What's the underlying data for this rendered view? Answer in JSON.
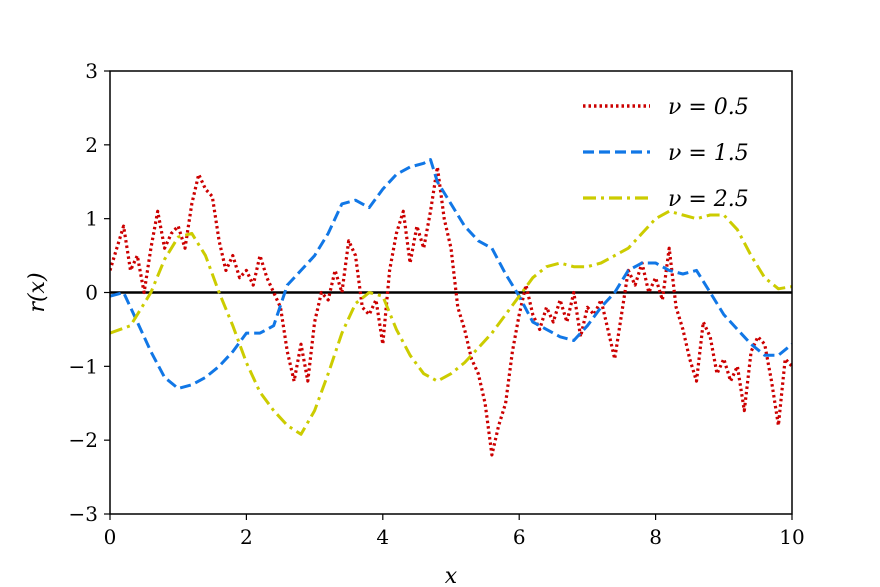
{
  "chart_data": {
    "type": "line",
    "title": "",
    "xlabel": "x",
    "ylabel": "r(x)",
    "xlim": [
      0,
      10
    ],
    "ylim": [
      -3,
      3
    ],
    "xticks": [
      0,
      2,
      4,
      6,
      8,
      10
    ],
    "xtick_labels": [
      "0",
      "2",
      "4",
      "6",
      "8",
      "10"
    ],
    "yticks": [
      -3,
      -2,
      -1,
      0,
      1,
      2,
      3
    ],
    "ytick_labels": [
      "−3",
      "−2",
      "−1",
      "0",
      "1",
      "2",
      "3"
    ],
    "grid": false,
    "legend_position": "top-right",
    "reference_line": {
      "y": 0,
      "color": "#000000"
    },
    "series": [
      {
        "name": "ν = 0.5",
        "color": "#cc0000",
        "style": "dotted",
        "points": [
          [
            0.0,
            0.3
          ],
          [
            0.1,
            0.6
          ],
          [
            0.2,
            0.9
          ],
          [
            0.3,
            0.3
          ],
          [
            0.4,
            0.5
          ],
          [
            0.5,
            0.0
          ],
          [
            0.6,
            0.6
          ],
          [
            0.7,
            1.1
          ],
          [
            0.8,
            0.6
          ],
          [
            0.9,
            0.8
          ],
          [
            1.0,
            0.9
          ],
          [
            1.1,
            0.6
          ],
          [
            1.2,
            1.2
          ],
          [
            1.3,
            1.6
          ],
          [
            1.4,
            1.4
          ],
          [
            1.5,
            1.3
          ],
          [
            1.6,
            0.7
          ],
          [
            1.7,
            0.3
          ],
          [
            1.8,
            0.5
          ],
          [
            1.9,
            0.2
          ],
          [
            2.0,
            0.3
          ],
          [
            2.1,
            0.1
          ],
          [
            2.2,
            0.5
          ],
          [
            2.3,
            0.2
          ],
          [
            2.4,
            0.0
          ],
          [
            2.5,
            -0.2
          ],
          [
            2.6,
            -0.8
          ],
          [
            2.7,
            -1.2
          ],
          [
            2.8,
            -0.7
          ],
          [
            2.9,
            -1.2
          ],
          [
            3.0,
            -0.4
          ],
          [
            3.1,
            0.0
          ],
          [
            3.2,
            -0.1
          ],
          [
            3.3,
            0.3
          ],
          [
            3.4,
            0.0
          ],
          [
            3.5,
            0.7
          ],
          [
            3.6,
            0.5
          ],
          [
            3.7,
            -0.2
          ],
          [
            3.8,
            -0.3
          ],
          [
            3.9,
            -0.1
          ],
          [
            4.0,
            -0.7
          ],
          [
            4.1,
            0.3
          ],
          [
            4.2,
            0.8
          ],
          [
            4.3,
            1.1
          ],
          [
            4.4,
            0.4
          ],
          [
            4.5,
            0.9
          ],
          [
            4.6,
            0.6
          ],
          [
            4.7,
            1.1
          ],
          [
            4.8,
            1.7
          ],
          [
            4.9,
            1.0
          ],
          [
            5.0,
            0.6
          ],
          [
            5.1,
            -0.2
          ],
          [
            5.2,
            -0.5
          ],
          [
            5.3,
            -0.9
          ],
          [
            5.4,
            -1.1
          ],
          [
            5.5,
            -1.5
          ],
          [
            5.6,
            -2.2
          ],
          [
            5.7,
            -1.8
          ],
          [
            5.8,
            -1.5
          ],
          [
            5.9,
            -0.8
          ],
          [
            6.0,
            -0.3
          ],
          [
            6.1,
            0.1
          ],
          [
            6.2,
            -0.3
          ],
          [
            6.3,
            -0.5
          ],
          [
            6.4,
            -0.2
          ],
          [
            6.5,
            -0.4
          ],
          [
            6.6,
            -0.1
          ],
          [
            6.7,
            -0.4
          ],
          [
            6.8,
            0.0
          ],
          [
            6.9,
            -0.6
          ],
          [
            7.0,
            -0.2
          ],
          [
            7.1,
            -0.3
          ],
          [
            7.2,
            -0.1
          ],
          [
            7.3,
            -0.5
          ],
          [
            7.4,
            -0.9
          ],
          [
            7.5,
            -0.3
          ],
          [
            7.6,
            0.3
          ],
          [
            7.7,
            0.1
          ],
          [
            7.8,
            0.4
          ],
          [
            7.9,
            0.0
          ],
          [
            8.0,
            0.2
          ],
          [
            8.1,
            -0.1
          ],
          [
            8.2,
            0.6
          ],
          [
            8.3,
            -0.2
          ],
          [
            8.4,
            -0.5
          ],
          [
            8.5,
            -0.9
          ],
          [
            8.6,
            -1.2
          ],
          [
            8.7,
            -0.4
          ],
          [
            8.8,
            -0.6
          ],
          [
            8.9,
            -1.1
          ],
          [
            9.0,
            -0.9
          ],
          [
            9.1,
            -1.2
          ],
          [
            9.2,
            -1.0
          ],
          [
            9.3,
            -1.6
          ],
          [
            9.4,
            -0.8
          ],
          [
            9.5,
            -0.6
          ],
          [
            9.6,
            -0.7
          ],
          [
            9.7,
            -1.2
          ],
          [
            9.8,
            -1.8
          ],
          [
            9.9,
            -0.9
          ],
          [
            10.0,
            -1.0
          ]
        ]
      },
      {
        "name": "ν = 1.5",
        "color": "#1177e6",
        "style": "dashed",
        "points": [
          [
            0.0,
            -0.05
          ],
          [
            0.2,
            0.0
          ],
          [
            0.4,
            -0.4
          ],
          [
            0.6,
            -0.8
          ],
          [
            0.8,
            -1.15
          ],
          [
            1.0,
            -1.3
          ],
          [
            1.2,
            -1.25
          ],
          [
            1.4,
            -1.15
          ],
          [
            1.6,
            -1.0
          ],
          [
            1.8,
            -0.8
          ],
          [
            2.0,
            -0.55
          ],
          [
            2.2,
            -0.55
          ],
          [
            2.4,
            -0.45
          ],
          [
            2.6,
            0.1
          ],
          [
            2.8,
            0.3
          ],
          [
            3.0,
            0.5
          ],
          [
            3.2,
            0.8
          ],
          [
            3.4,
            1.2
          ],
          [
            3.6,
            1.25
          ],
          [
            3.8,
            1.15
          ],
          [
            4.0,
            1.4
          ],
          [
            4.2,
            1.6
          ],
          [
            4.4,
            1.7
          ],
          [
            4.6,
            1.75
          ],
          [
            4.7,
            1.8
          ],
          [
            4.8,
            1.5
          ],
          [
            5.0,
            1.2
          ],
          [
            5.2,
            0.9
          ],
          [
            5.4,
            0.7
          ],
          [
            5.6,
            0.6
          ],
          [
            5.8,
            0.25
          ],
          [
            6.0,
            -0.05
          ],
          [
            6.2,
            -0.4
          ],
          [
            6.4,
            -0.5
          ],
          [
            6.6,
            -0.6
          ],
          [
            6.8,
            -0.65
          ],
          [
            7.0,
            -0.45
          ],
          [
            7.2,
            -0.2
          ],
          [
            7.4,
            0.0
          ],
          [
            7.6,
            0.3
          ],
          [
            7.8,
            0.4
          ],
          [
            8.0,
            0.4
          ],
          [
            8.2,
            0.3
          ],
          [
            8.4,
            0.25
          ],
          [
            8.6,
            0.3
          ],
          [
            8.8,
            0.0
          ],
          [
            9.0,
            -0.3
          ],
          [
            9.2,
            -0.5
          ],
          [
            9.4,
            -0.7
          ],
          [
            9.6,
            -0.85
          ],
          [
            9.8,
            -0.85
          ],
          [
            10.0,
            -0.7
          ]
        ]
      },
      {
        "name": "ν = 2.5",
        "color": "#cccc00",
        "style": "dashdot",
        "points": [
          [
            0.0,
            -0.55
          ],
          [
            0.3,
            -0.45
          ],
          [
            0.6,
            0.0
          ],
          [
            0.8,
            0.45
          ],
          [
            1.0,
            0.75
          ],
          [
            1.2,
            0.8
          ],
          [
            1.4,
            0.5
          ],
          [
            1.6,
            0.0
          ],
          [
            1.8,
            -0.45
          ],
          [
            2.0,
            -0.95
          ],
          [
            2.2,
            -1.35
          ],
          [
            2.4,
            -1.6
          ],
          [
            2.6,
            -1.8
          ],
          [
            2.8,
            -1.92
          ],
          [
            3.0,
            -1.6
          ],
          [
            3.2,
            -1.1
          ],
          [
            3.4,
            -0.55
          ],
          [
            3.6,
            -0.15
          ],
          [
            3.8,
            0.0
          ],
          [
            4.0,
            -0.05
          ],
          [
            4.2,
            -0.5
          ],
          [
            4.4,
            -0.85
          ],
          [
            4.6,
            -1.1
          ],
          [
            4.8,
            -1.2
          ],
          [
            5.0,
            -1.1
          ],
          [
            5.2,
            -0.95
          ],
          [
            5.4,
            -0.75
          ],
          [
            5.6,
            -0.55
          ],
          [
            5.8,
            -0.3
          ],
          [
            6.0,
            -0.05
          ],
          [
            6.2,
            0.2
          ],
          [
            6.4,
            0.35
          ],
          [
            6.6,
            0.4
          ],
          [
            6.8,
            0.35
          ],
          [
            7.0,
            0.35
          ],
          [
            7.2,
            0.4
          ],
          [
            7.4,
            0.5
          ],
          [
            7.6,
            0.6
          ],
          [
            7.8,
            0.8
          ],
          [
            8.0,
            1.0
          ],
          [
            8.2,
            1.1
          ],
          [
            8.4,
            1.05
          ],
          [
            8.6,
            1.0
          ],
          [
            8.8,
            1.05
          ],
          [
            9.0,
            1.05
          ],
          [
            9.2,
            0.85
          ],
          [
            9.4,
            0.5
          ],
          [
            9.6,
            0.2
          ],
          [
            9.8,
            0.05
          ],
          [
            10.0,
            0.08
          ]
        ]
      }
    ]
  }
}
